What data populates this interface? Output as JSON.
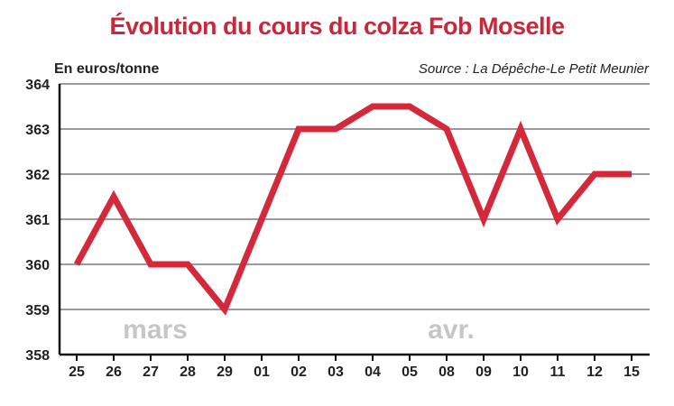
{
  "chart_data": {
    "type": "line",
    "title": "Évolution du cours du colza Fob Moselle",
    "ylabel": "En euros/tonne",
    "source": "Source : La Dépêche-Le Petit Meunier",
    "categories": [
      "25",
      "26",
      "27",
      "28",
      "29",
      "01",
      "02",
      "03",
      "04",
      "05",
      "08",
      "09",
      "10",
      "11",
      "12",
      "15"
    ],
    "series": [
      {
        "values": [
          360,
          361.5,
          360,
          360,
          359,
          361,
          363,
          363,
          363.5,
          363.5,
          363,
          361,
          363,
          361,
          362,
          362
        ]
      }
    ],
    "ylim": [
      358,
      364
    ],
    "yticks": [
      "358",
      "359",
      "360",
      "361",
      "362",
      "363",
      "364"
    ],
    "period_labels": [
      {
        "text": "mars",
        "at": "27"
      },
      {
        "text": "avr.",
        "at": "08"
      }
    ],
    "grid": true,
    "colors": {
      "line": "#d4293b",
      "title": "#c8283a",
      "grid": "#9a9a9a",
      "period": "#c6c6c6"
    }
  }
}
